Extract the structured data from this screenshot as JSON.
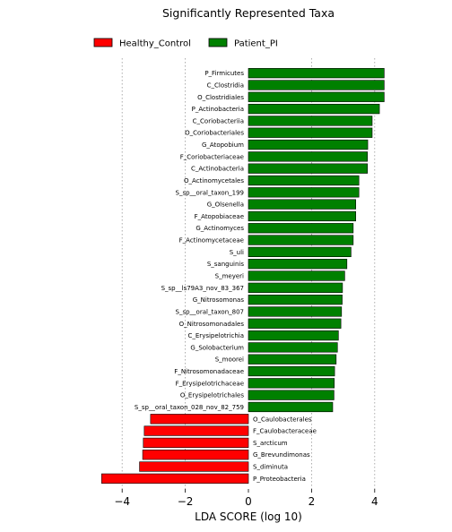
{
  "chart_data": {
    "type": "bar",
    "orientation": "horizontal",
    "title": "Significantly Represented Taxa",
    "xlabel": "LDA SCORE (log 10)",
    "ylabel": "",
    "xlim": [
      -4.7,
      4.7
    ],
    "xticks": [
      -4,
      -2,
      0,
      2,
      4
    ],
    "xtick_labels": [
      "−4",
      "−2",
      "0",
      "2",
      "4"
    ],
    "grid": "vertical dotted lines at each x tick",
    "legend": {
      "placement": "top-left",
      "entries": [
        {
          "name": "Healthy_Control",
          "color": "#ff0000"
        },
        {
          "name": "Patient_PI",
          "color": "#008000"
        }
      ]
    },
    "series": [
      {
        "name": "Patient_PI",
        "color": "#008000",
        "label_side": "left"
      },
      {
        "name": "Healthy_Control",
        "color": "#ff0000",
        "label_side": "right"
      }
    ],
    "bars": [
      {
        "label": "P_Firmicutes",
        "value": 4.3,
        "series": "Patient_PI"
      },
      {
        "label": "C_Clostridia",
        "value": 4.3,
        "series": "Patient_PI"
      },
      {
        "label": "O_Clostridiales",
        "value": 4.3,
        "series": "Patient_PI"
      },
      {
        "label": "P_Actinobacteria",
        "value": 4.15,
        "series": "Patient_PI"
      },
      {
        "label": "C_Coriobacteriia",
        "value": 3.92,
        "series": "Patient_PI"
      },
      {
        "label": "O_Coriobacteriales",
        "value": 3.92,
        "series": "Patient_PI"
      },
      {
        "label": "G_Atopobium",
        "value": 3.78,
        "series": "Patient_PI"
      },
      {
        "label": "F_Coriobacteriaceae",
        "value": 3.77,
        "series": "Patient_PI"
      },
      {
        "label": "C_Actinobacteria",
        "value": 3.77,
        "series": "Patient_PI"
      },
      {
        "label": "O_Actinomycetales",
        "value": 3.5,
        "series": "Patient_PI"
      },
      {
        "label": "S_sp__oral_taxon_199",
        "value": 3.5,
        "series": "Patient_PI"
      },
      {
        "label": "G_Olsenella",
        "value": 3.4,
        "series": "Patient_PI"
      },
      {
        "label": "F_Atopobiaceae",
        "value": 3.4,
        "series": "Patient_PI"
      },
      {
        "label": "G_Actinomyces",
        "value": 3.32,
        "series": "Patient_PI"
      },
      {
        "label": "F_Actinomycetaceae",
        "value": 3.32,
        "series": "Patient_PI"
      },
      {
        "label": "S_uli",
        "value": 3.25,
        "series": "Patient_PI"
      },
      {
        "label": "S_sanguinis",
        "value": 3.12,
        "series": "Patient_PI"
      },
      {
        "label": "S_meyeri",
        "value": 3.05,
        "series": "Patient_PI"
      },
      {
        "label": "S_sp__ls79A3_nov_83_367",
        "value": 2.98,
        "series": "Patient_PI"
      },
      {
        "label": "G_Nitrosomonas",
        "value": 2.97,
        "series": "Patient_PI"
      },
      {
        "label": "S_sp__oral_taxon_807",
        "value": 2.95,
        "series": "Patient_PI"
      },
      {
        "label": "O_Nitrosomonadales",
        "value": 2.93,
        "series": "Patient_PI"
      },
      {
        "label": "C_Erysipelotrichia",
        "value": 2.85,
        "series": "Patient_PI"
      },
      {
        "label": "G_Solobacterium",
        "value": 2.82,
        "series": "Patient_PI"
      },
      {
        "label": "S_moorei",
        "value": 2.78,
        "series": "Patient_PI"
      },
      {
        "label": "F_Nitrosomonadaceae",
        "value": 2.73,
        "series": "Patient_PI"
      },
      {
        "label": "F_Erysipelotrichaceae",
        "value": 2.72,
        "series": "Patient_PI"
      },
      {
        "label": "O_Erysipelotrichales",
        "value": 2.71,
        "series": "Patient_PI"
      },
      {
        "label": "S_sp__oral_taxon_028_nov_82_759",
        "value": 2.67,
        "series": "Patient_PI"
      },
      {
        "label": "O_Caulobacterales",
        "value": -3.1,
        "series": "Healthy_Control"
      },
      {
        "label": "F_Caulobacteraceae",
        "value": -3.3,
        "series": "Healthy_Control"
      },
      {
        "label": "S_arcticum",
        "value": -3.33,
        "series": "Healthy_Control"
      },
      {
        "label": "G_Brevundimonas",
        "value": -3.35,
        "series": "Healthy_Control"
      },
      {
        "label": "S_diminuta",
        "value": -3.45,
        "series": "Healthy_Control"
      },
      {
        "label": "P_Proteobacteria",
        "value": -4.65,
        "series": "Healthy_Control"
      }
    ]
  }
}
